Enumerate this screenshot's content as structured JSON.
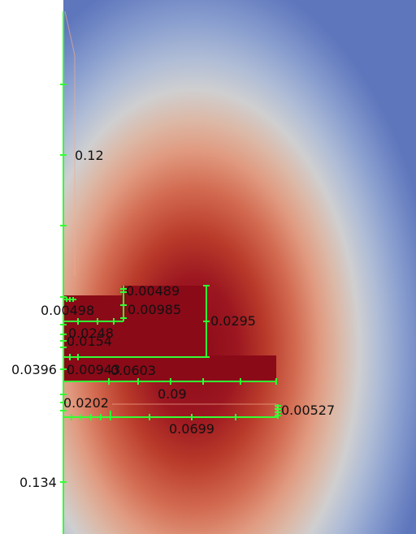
{
  "colors": {
    "axis": "#33ff33",
    "core": "#8a0a18",
    "cold": "#5e76bc",
    "background": "#ffffff"
  },
  "dimension_labels": {
    "d_0_12": "0.12",
    "d_0_00489": "0.00489",
    "d_0_00498": "0.00498",
    "d_0_00985": "0.00985",
    "d_0_0295": "0.0295",
    "d_0_0248": "0.0248",
    "d_0_0154": "0.0154",
    "d_0_0396": "0.0396",
    "d_0_00943": "0.00943",
    "d_0_0603": "0.0603",
    "d_0_09": "0.09",
    "d_0_0202": "0.0202",
    "d_0_00527": "0.00527",
    "d_0_0699": "0.0699",
    "d_0_134": "0.134"
  }
}
